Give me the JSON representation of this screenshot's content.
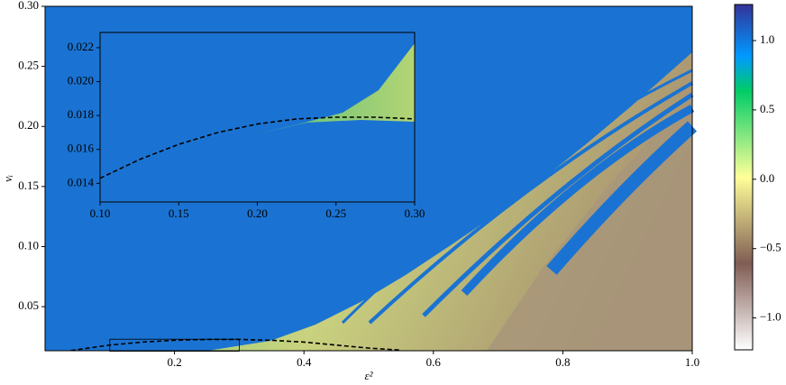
{
  "chart_data": [
    {
      "type": "heatmap",
      "xlabel": "ε²",
      "ylabel": "vᵢ",
      "xlim": [
        0,
        1
      ],
      "ylim": [
        0.0133,
        0.3
      ],
      "xticks": [
        0.2,
        0.4,
        0.6,
        0.8,
        {
          "value": 1,
          "label": "1.0"
        }
      ],
      "yticks": [
        0.05,
        {
          "value": 0.1,
          "label": "0.10"
        },
        0.15,
        {
          "value": 0.2,
          "label": "0.20"
        },
        0.25,
        {
          "value": 0.3,
          "label": "0.30"
        }
      ],
      "x": [
        0.04,
        0.1,
        0.15,
        0.2,
        0.25,
        0.3,
        0.35,
        0.4,
        0.45,
        0.5,
        0.55
      ],
      "values": [
        0.0135,
        0.018,
        0.0205,
        0.022,
        0.0227,
        0.0227,
        0.022,
        0.0205,
        0.018,
        0.0155,
        0.0138
      ],
      "line_color": "#000000",
      "colorbar_lim": [
        -1.23,
        1.26
      ],
      "colorbar_ticks": [
        {
          "value": 1,
          "label": "1.0"
        },
        {
          "value": 0.5,
          "label": "0.5"
        },
        {
          "value": 0,
          "label": "0.0"
        },
        {
          "value": -0.5,
          "label": "−0.5"
        },
        {
          "value": -1,
          "label": "−1.0"
        }
      ]
    },
    {
      "type": "heatmap",
      "xlim": [
        0.1,
        0.3
      ],
      "ylim": [
        0.0129,
        0.0229
      ],
      "xticks": [
        {
          "value": 0.1,
          "label": "0.10"
        },
        0.15,
        {
          "value": 0.2,
          "label": "0.20"
        },
        0.25,
        {
          "value": 0.3,
          "label": "0.30"
        }
      ],
      "yticks": [
        0.014,
        0.016,
        0.018,
        {
          "value": 0.02,
          "label": "0.020"
        },
        0.022
      ],
      "x": [
        0.1,
        0.125,
        0.15,
        0.175,
        0.2,
        0.225,
        0.25,
        0.275,
        0.3
      ],
      "values": [
        0.0143,
        0.0154,
        0.0163,
        0.017,
        0.0175,
        0.0178,
        0.0179,
        0.0179,
        0.0178
      ],
      "line_color": "#000000"
    }
  ]
}
